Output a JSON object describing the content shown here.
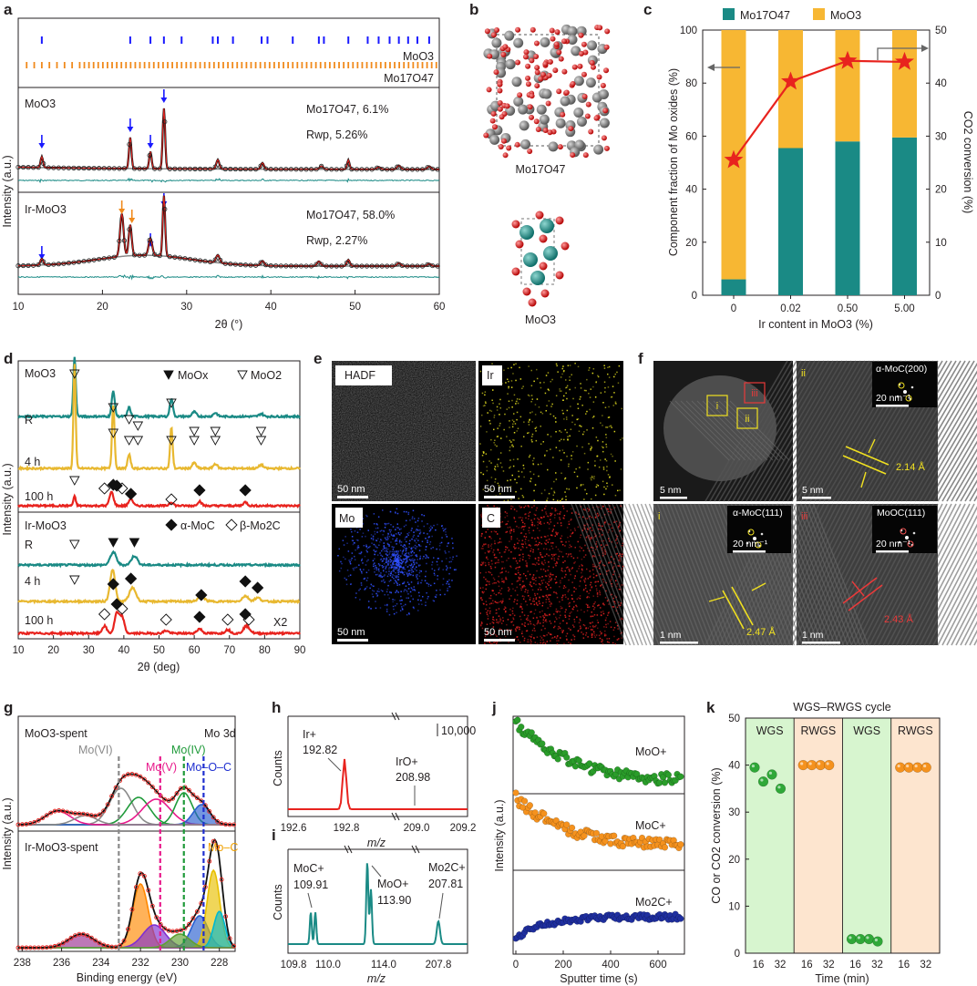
{
  "panel_letters": [
    "a",
    "b",
    "c",
    "d",
    "e",
    "f",
    "g",
    "h",
    "i",
    "j",
    "k"
  ],
  "colors": {
    "teal": "#1a8a85",
    "orange": "#f5a623",
    "gold": "#f7b733",
    "red": "#e8231e",
    "blue": "#1a1aff",
    "green": "#2a9d2a",
    "navy": "#1f2fa0",
    "magenta": "#e8198b"
  },
  "panel_a": {
    "xlabel": "2θ (°)",
    "ylabel": "Intensity (a.u.)",
    "xticks": [
      "10",
      "20",
      "30",
      "40",
      "50",
      "60"
    ],
    "ref_labels": [
      "MoO3",
      "Mo17O47"
    ],
    "top": {
      "sample": "MoO3",
      "phase": "Mo17O47, 6.1%",
      "rwp": "Rwp, 5.26%"
    },
    "bottom": {
      "sample": "Ir-MoO3",
      "phase": "Mo17O47, 58.0%",
      "rwp": "Rwp, 2.27%"
    }
  },
  "panel_b": {
    "labels": [
      "Mo17O47",
      "MoO3"
    ]
  },
  "panel_c": {
    "chart_data": {
      "type": "bar",
      "categories": [
        "0",
        "0.02",
        "0.50",
        "5.00"
      ],
      "series": [
        {
          "name": "Mo17O47",
          "values": [
            6,
            55.5,
            58,
            59.5
          ]
        },
        {
          "name": "MoO3",
          "values": [
            94,
            44.5,
            42,
            40.5
          ]
        }
      ],
      "line": {
        "values": [
          25.5,
          40.3,
          44.2,
          44.0
        ]
      },
      "xlabel": "Ir content in MoO3 (%)",
      "ylabel": "Component fraction of Mo oxides (%)",
      "y2label": "CO2 conversion (%)",
      "ylim": [
        0,
        100
      ],
      "y2lim": [
        0,
        50
      ],
      "yticks": [
        "0",
        "20",
        "40",
        "60",
        "80",
        "100"
      ],
      "y2ticks": [
        "0",
        "10",
        "20",
        "30",
        "40",
        "50"
      ],
      "legend": [
        "Mo17O47",
        "MoO3"
      ]
    }
  },
  "panel_d": {
    "xlabel": "2θ (deg)",
    "ylabel": "Intensity (a.u.)",
    "xticks": [
      "10",
      "20",
      "30",
      "40",
      "50",
      "60",
      "70",
      "80",
      "90"
    ],
    "top_label": "MoO3",
    "bottom_label": "Ir-MoO3",
    "legend_top": [
      "MoOx",
      "MoO2"
    ],
    "legend_bottom": [
      "α-MoC",
      "β-Mo2C"
    ],
    "curve_labels": [
      "R",
      "4 h",
      "100 h"
    ],
    "x2": "X2"
  },
  "panel_e": {
    "labels": [
      "HADF",
      "Ir",
      "Mo",
      "C"
    ],
    "scale": "50 nm"
  },
  "panel_f": {
    "roi": [
      "i",
      "ii",
      "iii"
    ],
    "insets": [
      "α-MoC(200)",
      "α-MoC(111)",
      "MoOC(111)"
    ],
    "spacings": [
      "2.14 Å",
      "2.47 Å",
      "2.43 Å"
    ],
    "scales": [
      "5 nm",
      "5 nm",
      "1 nm",
      "1 nm",
      "20 nm⁻¹",
      "20 nm⁻¹",
      "20 nm⁻¹"
    ]
  },
  "panel_g": {
    "xlabel": "Binding energy (eV)",
    "ylabel": "Intensity (a.u.)",
    "xticks": [
      "238",
      "236",
      "234",
      "232",
      "230",
      "228"
    ],
    "samples": [
      "MoO3-spent",
      "Ir-MoO3-spent"
    ],
    "region": "Mo 3d",
    "components": [
      "Mo(VI)",
      "Mo(IV)",
      "Mo(V)",
      "Mo–O–C",
      "Mo–C"
    ]
  },
  "panel_h": {
    "ylabel": "Counts",
    "xlabel": "m/z",
    "xticks": [
      "192.6",
      "192.8",
      "209.0",
      "209.2"
    ],
    "scale": "10,000",
    "peaks": [
      "Ir+",
      "192.82",
      "IrO+",
      "208.98"
    ]
  },
  "panel_i": {
    "ylabel": "Counts",
    "xlabel": "m/z",
    "xticks": [
      "109.8",
      "110.0",
      "114.0",
      "207.8"
    ],
    "peaks": [
      "MoC+",
      "109.91",
      "MoO+",
      "113.90",
      "Mo2C+",
      "207.81"
    ]
  },
  "panel_j": {
    "ylabel": "Intensity (a.u.)",
    "xlabel": "Sputter time (s)",
    "xticks": [
      "0",
      "200",
      "400",
      "600"
    ],
    "series": [
      "MoO+",
      "MoC+",
      "Mo2C+"
    ]
  },
  "panel_k": {
    "chart_data": {
      "type": "scatter",
      "title": "WGS–RWGS cycle",
      "segments": [
        "WGS",
        "RWGS",
        "WGS",
        "RWGS"
      ],
      "xticks": [
        "16",
        "32",
        "16",
        "32",
        "16",
        "32",
        "16",
        "32"
      ],
      "xlabel": "Time (min)",
      "ylabel": "CO or CO2 conversion (%)",
      "ylim": [
        0,
        50
      ],
      "yticks": [
        "0",
        "10",
        "20",
        "30",
        "40",
        "50"
      ],
      "points": [
        {
          "segment": 0,
          "values": [
            39.5,
            36.5,
            38,
            35
          ]
        },
        {
          "segment": 1,
          "values": [
            40,
            40,
            40,
            40
          ]
        },
        {
          "segment": 2,
          "values": [
            3,
            3,
            3,
            2.5
          ]
        },
        {
          "segment": 3,
          "values": [
            39.5,
            39.5,
            39.5,
            39.5
          ]
        }
      ]
    }
  }
}
